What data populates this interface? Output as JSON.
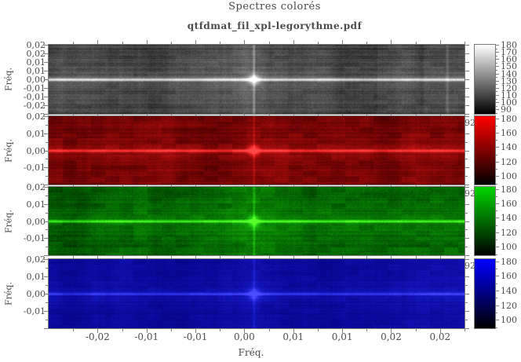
{
  "title": "Spectres colorés",
  "subtitle": "qtfdmat_fil_xpl-legorythme.pdf",
  "xlabel": "Fréq.",
  "x_tick_labels": [
    "-0,02",
    "-0,01",
    "-0,01",
    "0,00",
    "0,01",
    "0,01",
    "0,02",
    "0,02"
  ],
  "colors": {
    "axis": "#7a7a7a",
    "tick": "#808080",
    "label_text": "#4d4d4d",
    "title_text": "#4a4a4a",
    "red_accent": "#ff0000",
    "green_accent": "#00d400",
    "blue_accent": "#0000ff",
    "gray_accent": "#ffffff"
  },
  "panels": [
    {
      "id": "luminance",
      "style": "gray",
      "ylabel": "Fréq.",
      "corner_fragment": "",
      "y_tick_labels": [
        "0,02",
        "0,02",
        "0,01",
        "0,01",
        "0,00",
        "-0,01",
        "-0,01",
        "-0,02"
      ],
      "colorbar_labels": [
        "180",
        "170",
        "160",
        "150",
        "140",
        "130",
        "120",
        "110",
        "100",
        "90"
      ],
      "colorbar_top_color": "#ffffff",
      "colorbar_bottom_color": "#000000"
    },
    {
      "id": "red",
      "style": "red",
      "ylabel": "Fréq.",
      "corner_fragment": "92",
      "y_tick_labels": [
        "0,02",
        "0,01",
        "0,00",
        "-0,01"
      ],
      "colorbar_labels": [
        "180",
        "160",
        "140",
        "120",
        "100"
      ],
      "colorbar_top_color": "#ff0000",
      "colorbar_bottom_color": "#000000"
    },
    {
      "id": "green",
      "style": "green",
      "ylabel": "Fréq.",
      "corner_fragment": "92",
      "y_tick_labels": [
        "0,02",
        "0,01",
        "0,00",
        "-0,01"
      ],
      "colorbar_labels": [
        "180",
        "160",
        "140",
        "120",
        "100"
      ],
      "colorbar_top_color": "#00d400",
      "colorbar_bottom_color": "#000000"
    },
    {
      "id": "blue",
      "style": "blue",
      "ylabel": "Fréq.",
      "corner_fragment": "92",
      "y_tick_labels": [
        "0,02",
        "0,01",
        "0,00",
        "-0,01"
      ],
      "colorbar_labels": [
        "180",
        "160",
        "140",
        "120",
        "100"
      ],
      "colorbar_top_color": "#0000ff",
      "colorbar_bottom_color": "#000000"
    }
  ],
  "chart_data": {
    "type": "heatmap",
    "title": "Spectres colorés",
    "subtitle": "qtfdmat_fil_xpl-legorythme.pdf",
    "xlabel": "Fréq.",
    "ylabel": "Fréq.",
    "layout": "4 stacked spectrogram panels (luminance, red, green, blue) sharing one frequency x-axis, each with its own intensity colorbar on the right",
    "x_tick_labels": [
      "-0,02",
      "-0,01",
      "-0,01",
      "0,00",
      "0,01",
      "0,01",
      "0,02",
      "0,02"
    ],
    "x_range_approx": [
      -0.025,
      0.025
    ],
    "y_range_approx": [
      -0.02,
      0.02
    ],
    "panels": [
      {
        "channel": "luminance (grayscale)",
        "y_tick_labels": [
          "0,02",
          "0,02",
          "0,01",
          "0,01",
          "0,00",
          "-0,01",
          "-0,01",
          "-0,02"
        ],
        "colorbar_ticks": [
          180,
          170,
          160,
          150,
          140,
          130,
          120,
          110,
          100,
          90
        ],
        "colorbar_range": [
          90,
          180
        ],
        "pattern": "noisy dark-gray spectrum, bright horizontal ridge at freq 0,00, bright vertical ridge near x=0,00 with white peak at the crossing, lighter vertical bands near right edge"
      },
      {
        "channel": "red",
        "y_tick_labels": [
          "0,02",
          "0,01",
          "0,00",
          "-0,01"
        ],
        "colorbar_ticks": [
          180,
          160,
          140,
          120,
          100
        ],
        "colorbar_range": [
          90,
          180
        ],
        "pattern": "dark red noisy spectrum with bright red horizontal ridge at freq 0,00 and vertical ridge near x=0,00, brightest at crossing"
      },
      {
        "channel": "green",
        "y_tick_labels": [
          "0,02",
          "0,01",
          "0,00",
          "-0,01"
        ],
        "colorbar_ticks": [
          180,
          160,
          140,
          120,
          100
        ],
        "colorbar_range": [
          90,
          180
        ],
        "pattern": "dark green noisy spectrum with bright green horizontal ridge at freq 0,00 and vertical ridge near x=0,00, brightest at crossing"
      },
      {
        "channel": "blue",
        "y_tick_labels": [
          "0,02",
          "0,01",
          "0,00",
          "-0,01"
        ],
        "colorbar_ticks": [
          180,
          160,
          140,
          120,
          100
        ],
        "colorbar_range": [
          90,
          180
        ],
        "pattern": "medium blue noisy spectrum with brighter blue horizontal ridge at freq 0,00 and vertical ridge near x=0,00, brightest at crossing"
      }
    ]
  }
}
